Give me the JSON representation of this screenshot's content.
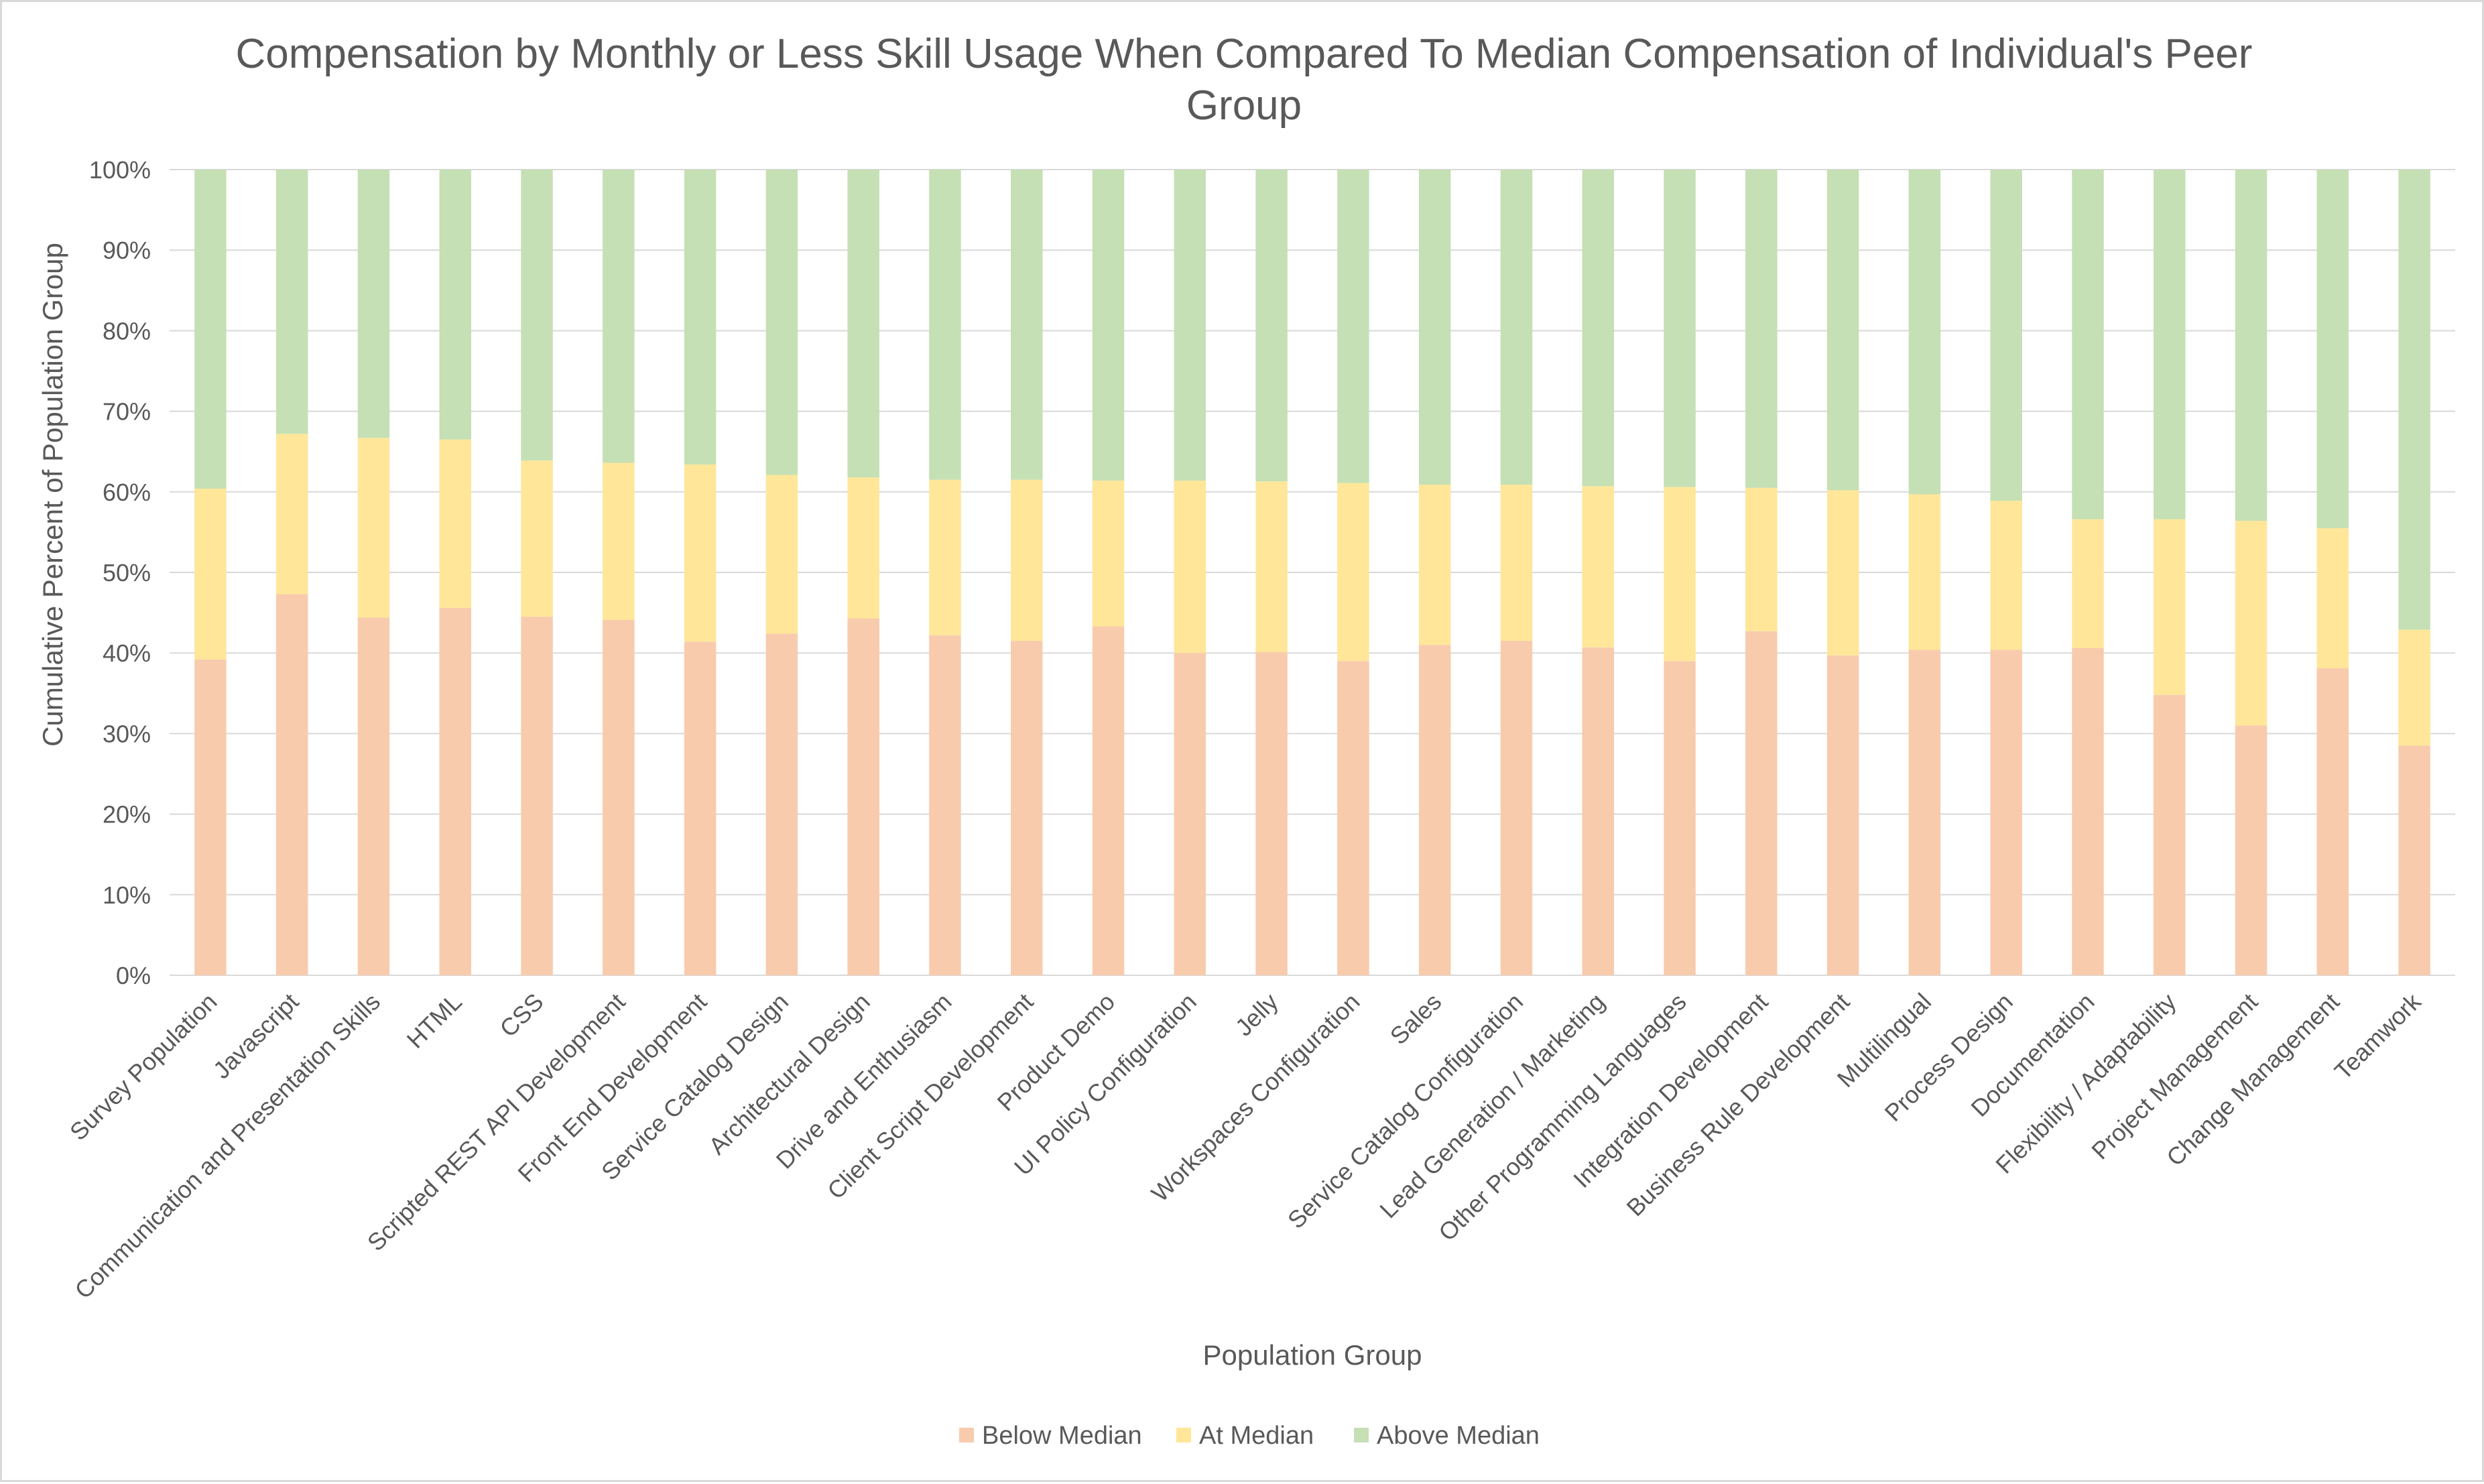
{
  "chart_data": {
    "type": "bar",
    "stacked": true,
    "title": "Compensation by Monthly or Less Skill Usage When Compared To Median Compensation of Individual's Peer Group",
    "title_lines": [
      "Compensation by Monthly or Less Skill Usage When Compared To Median Compensation of Individual's Peer",
      "Group"
    ],
    "xlabel": "Population Group",
    "ylabel": "Cumulative Percent of Population Group",
    "ylim": [
      0,
      100
    ],
    "yticks": [
      "0%",
      "10%",
      "20%",
      "30%",
      "40%",
      "50%",
      "60%",
      "70%",
      "80%",
      "90%",
      "100%"
    ],
    "grid": true,
    "legend_position": "bottom",
    "categories": [
      "Survey Population",
      "Javascript",
      "Communication and Presentation Skills",
      "HTML",
      "CSS",
      "Scripted REST API Development",
      "Front End Development",
      "Service Catalog Design",
      "Architectural Design",
      "Drive and Enthusiasm",
      "Client Script Development",
      "Product Demo",
      "UI Policy Configuration",
      "Jelly",
      "Workspaces Configuration",
      "Sales",
      "Service Catalog Configuration",
      "Lead Generation / Marketing",
      "Other Programming Languages",
      "Integration Development",
      "Business Rule Development",
      "Multilingual",
      "Process Design",
      "Documentation",
      "Flexibility / Adaptability",
      "Project Management",
      "Change Management",
      "Teamwork"
    ],
    "series": [
      {
        "name": "Below Median",
        "color": "#f8cbad",
        "values": [
          39.2,
          47.3,
          44.4,
          45.6,
          44.5,
          44.1,
          41.4,
          42.4,
          44.3,
          42.2,
          41.5,
          43.3,
          40.0,
          40.1,
          39.0,
          41.0,
          41.5,
          40.7,
          39.0,
          42.7,
          39.7,
          40.4,
          40.4,
          40.6,
          34.8,
          31.0,
          38.1,
          28.5
        ]
      },
      {
        "name": "At Median",
        "color": "#ffe699",
        "values": [
          21.2,
          19.9,
          22.3,
          20.9,
          19.4,
          19.5,
          22.0,
          19.7,
          17.5,
          19.3,
          20.0,
          18.1,
          21.4,
          21.2,
          22.1,
          19.9,
          19.4,
          20.0,
          21.6,
          17.8,
          20.5,
          19.3,
          18.5,
          16.0,
          21.8,
          25.4,
          17.4,
          14.4
        ]
      },
      {
        "name": "Above Median",
        "color": "#c5e0b4",
        "values": [
          39.6,
          32.8,
          33.3,
          33.5,
          36.1,
          36.4,
          36.6,
          37.9,
          38.2,
          38.5,
          38.5,
          38.6,
          38.6,
          38.7,
          38.9,
          39.1,
          39.1,
          39.3,
          39.4,
          39.5,
          39.8,
          40.3,
          41.1,
          43.4,
          43.4,
          43.6,
          44.5,
          57.1
        ]
      }
    ]
  }
}
